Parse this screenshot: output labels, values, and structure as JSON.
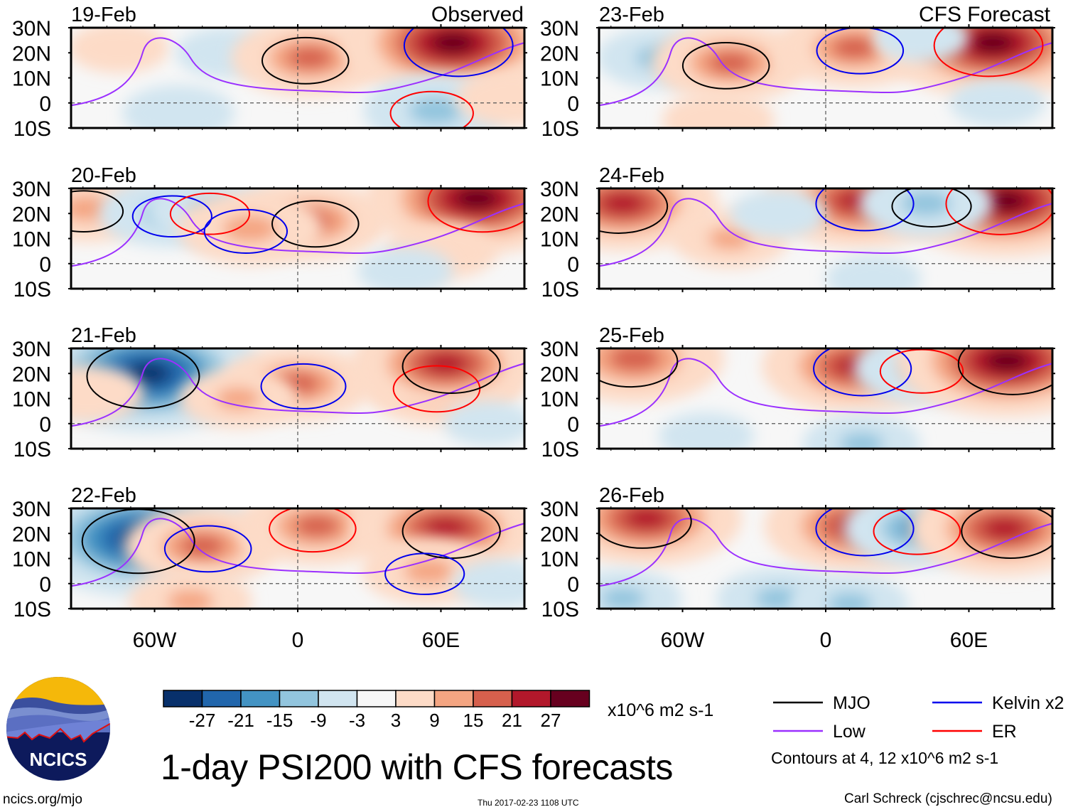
{
  "chart_data": {
    "type": "heatmap",
    "title": "1-day PSI200 with CFS forecasts",
    "variable": "200-hPa streamfunction anomaly (PSI200)",
    "units": "x10^6 m2 s-1",
    "columns": [
      {
        "header": "Observed",
        "panels": [
          "19-Feb",
          "20-Feb",
          "21-Feb",
          "22-Feb"
        ]
      },
      {
        "header": "CFS Forecast",
        "panels": [
          "23-Feb",
          "24-Feb",
          "25-Feb",
          "26-Feb"
        ]
      }
    ],
    "x_axis": {
      "range": [
        "90W",
        "100E"
      ],
      "ticks": [
        "60W",
        "0",
        "60E"
      ],
      "tick_values": [
        -60,
        0,
        60
      ],
      "xlim": [
        -95,
        95
      ]
    },
    "y_axis": {
      "range": [
        "10S",
        "30N"
      ],
      "ticks": [
        "30N",
        "20N",
        "10N",
        "0",
        "10S"
      ],
      "tick_values": [
        30,
        20,
        10,
        0,
        -10
      ],
      "ylim": [
        -10,
        30
      ]
    },
    "colorbar": {
      "labels": [
        "-27",
        "-21",
        "-15",
        "-9",
        "-3",
        "3",
        "9",
        "15",
        "21",
        "27"
      ],
      "levels": [
        -27,
        -21,
        -15,
        -9,
        -3,
        3,
        9,
        15,
        21,
        27
      ],
      "colors": [
        "#08306b",
        "#2166ac",
        "#4393c3",
        "#92c5de",
        "#d1e5f0",
        "#f7f7f7",
        "#fddbc7",
        "#f4a582",
        "#d6604d",
        "#b2182b",
        "#67001f"
      ]
    },
    "legend": [
      {
        "label": "MJO",
        "color": "#000000"
      },
      {
        "label": "Kelvin x2",
        "color": "#0000ee"
      },
      {
        "label": "Low",
        "color": "#9b30ff"
      },
      {
        "label": "ER",
        "color": "#ff0000"
      }
    ],
    "contour_note": "Contours at 4, 12 x10^6 m2 s-1",
    "panels": [
      {
        "date": "19-Feb",
        "col": 0,
        "row": 0,
        "features": [
          {
            "lon": -75,
            "lat": 22,
            "value": 6
          },
          {
            "lon": -30,
            "lat": 20,
            "value": -6
          },
          {
            "lon": 5,
            "lat": 18,
            "value": 16
          },
          {
            "lon": 65,
            "lat": 24,
            "value": 28
          },
          {
            "lon": 58,
            "lat": -3,
            "value": -14
          },
          {
            "lon": -50,
            "lat": -4,
            "value": -8
          },
          {
            "lon": 90,
            "lat": 2,
            "value": 8
          }
        ]
      },
      {
        "date": "20-Feb",
        "col": 0,
        "row": 1,
        "features": [
          {
            "lon": -88,
            "lat": 22,
            "value": 12
          },
          {
            "lon": -55,
            "lat": 20,
            "value": -12
          },
          {
            "lon": -35,
            "lat": 21,
            "value": -12
          },
          {
            "lon": 5,
            "lat": 17,
            "value": 16
          },
          {
            "lon": -20,
            "lat": 14,
            "value": 14
          },
          {
            "lon": 75,
            "lat": 26,
            "value": 28
          },
          {
            "lon": 60,
            "lat": 5,
            "value": 8
          },
          {
            "lon": 45,
            "lat": -3,
            "value": -5
          }
        ]
      },
      {
        "date": "21-Feb",
        "col": 0,
        "row": 2,
        "features": [
          {
            "lon": -63,
            "lat": 20,
            "value": -30
          },
          {
            "lon": -88,
            "lat": 12,
            "value": 8
          },
          {
            "lon": 0,
            "lat": 16,
            "value": 15
          },
          {
            "lon": -25,
            "lat": 10,
            "value": 9
          },
          {
            "lon": 60,
            "lat": 15,
            "value": 16
          },
          {
            "lon": 62,
            "lat": 24,
            "value": 22
          },
          {
            "lon": 80,
            "lat": 0,
            "value": -4
          }
        ]
      },
      {
        "date": "22-Feb",
        "col": 0,
        "row": 3,
        "features": [
          {
            "lon": -65,
            "lat": 18,
            "value": -30
          },
          {
            "lon": -40,
            "lat": 15,
            "value": 16
          },
          {
            "lon": 8,
            "lat": 23,
            "value": 16
          },
          {
            "lon": 62,
            "lat": 22,
            "value": 22
          },
          {
            "lon": 55,
            "lat": 5,
            "value": 12
          },
          {
            "lon": 85,
            "lat": 0,
            "value": -5
          },
          {
            "lon": -45,
            "lat": -7,
            "value": 10
          }
        ]
      },
      {
        "date": "23-Feb",
        "col": 1,
        "row": 0,
        "features": [
          {
            "lon": -70,
            "lat": 18,
            "value": -10
          },
          {
            "lon": -40,
            "lat": 16,
            "value": 16
          },
          {
            "lon": 12,
            "lat": 22,
            "value": 16
          },
          {
            "lon": 70,
            "lat": 24,
            "value": 28
          },
          {
            "lon": 72,
            "lat": 0,
            "value": -5
          },
          {
            "lon": -45,
            "lat": -7,
            "value": 8
          },
          {
            "lon": 40,
            "lat": 26,
            "value": -5
          }
        ]
      },
      {
        "date": "24-Feb",
        "col": 1,
        "row": 1,
        "features": [
          {
            "lon": -85,
            "lat": 24,
            "value": 22
          },
          {
            "lon": -40,
            "lat": 10,
            "value": 9
          },
          {
            "lon": 14,
            "lat": 25,
            "value": 22
          },
          {
            "lon": 75,
            "lat": 25,
            "value": 28
          },
          {
            "lon": 42,
            "lat": 24,
            "value": -12
          },
          {
            "lon": -20,
            "lat": 20,
            "value": -5
          },
          {
            "lon": 20,
            "lat": -6,
            "value": -5
          }
        ]
      },
      {
        "date": "25-Feb",
        "col": 1,
        "row": 2,
        "features": [
          {
            "lon": -80,
            "lat": 26,
            "value": 20
          },
          {
            "lon": 13,
            "lat": 23,
            "value": 22
          },
          {
            "lon": 42,
            "lat": 22,
            "value": -14
          },
          {
            "lon": 76,
            "lat": 25,
            "value": 28
          },
          {
            "lon": 15,
            "lat": -8,
            "value": -9
          },
          {
            "lon": -50,
            "lat": -5,
            "value": -5
          }
        ]
      },
      {
        "date": "26-Feb",
        "col": 1,
        "row": 3,
        "features": [
          {
            "lon": -75,
            "lat": 26,
            "value": 22
          },
          {
            "lon": 14,
            "lat": 23,
            "value": 22
          },
          {
            "lon": 40,
            "lat": 22,
            "value": -16
          },
          {
            "lon": 75,
            "lat": 22,
            "value": 22
          },
          {
            "lon": -20,
            "lat": -6,
            "value": -10
          },
          {
            "lon": 10,
            "lat": -8,
            "value": -9
          },
          {
            "lon": -85,
            "lat": -6,
            "value": -9
          }
        ]
      }
    ]
  },
  "footer": {
    "title": "1-day PSI200 with CFS forecasts",
    "timestamp": "Thu 2017-02-23 1108 UTC",
    "url": "ncics.org/mjo",
    "credit": "Carl Schreck (cjschrec@ncsu.edu)",
    "units": "x10^6 m2 s-1",
    "logo_text": "NCICS"
  }
}
